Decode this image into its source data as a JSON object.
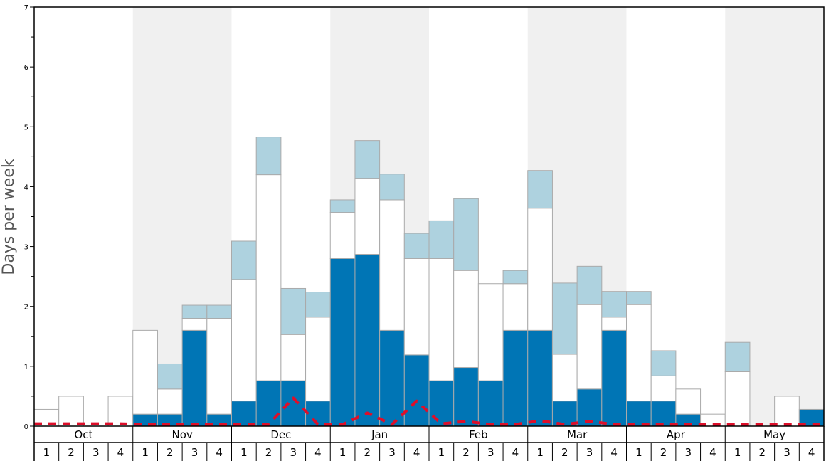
{
  "chart_data": {
    "type": "bar",
    "stacked": true,
    "ylabel": "Days per week",
    "ylim": [
      0,
      7
    ],
    "y_ticks": [
      "0",
      "1",
      "2",
      "3",
      "4",
      "5",
      "6",
      "7"
    ],
    "grid": false,
    "months": [
      "Oct",
      "Nov",
      "Dec",
      "Jan",
      "Feb",
      "Mar",
      "Apr",
      "May"
    ],
    "weeks_per_month": [
      "1",
      "2",
      "3",
      "4"
    ],
    "colors": {
      "base": "#0075b5",
      "middle": "#ffffff",
      "top": "#aed2df",
      "line": "#dd0f2a",
      "shade": "#f0f0f0",
      "bar_stroke": "#aaaaaa"
    },
    "series": [
      {
        "values": [
          0,
          0,
          0,
          0,
          0.2,
          0.2,
          1.6,
          0.2,
          0.42,
          0.76,
          0.76,
          0.42,
          2.8,
          2.87,
          1.6,
          1.19,
          0.76,
          0.98,
          0.76,
          1.6,
          1.6,
          0.42,
          0.62,
          1.6,
          0.42,
          0.42,
          0.2,
          0,
          0,
          0,
          0,
          0.28
        ]
      },
      {
        "values": [
          0.28,
          0.5,
          0,
          0.5,
          1.4,
          0.42,
          0.2,
          1.6,
          2.03,
          3.44,
          0.77,
          1.4,
          0.77,
          1.27,
          2.18,
          1.61,
          2.04,
          1.62,
          1.62,
          0.78,
          2.04,
          0.78,
          1.41,
          0.22,
          1.61,
          0.42,
          0.42,
          0.2,
          0.91,
          0,
          0.5,
          0
        ]
      },
      {
        "values": [
          0,
          0,
          0,
          0,
          0,
          0.42,
          0.22,
          0.22,
          0.64,
          0.63,
          0.77,
          0.42,
          0.21,
          0.63,
          0.43,
          0.42,
          0.63,
          1.2,
          0,
          0.22,
          0.63,
          1.19,
          0.64,
          0.43,
          0.22,
          0.42,
          0,
          0,
          0.49,
          0,
          0,
          0
        ]
      },
      {
        "type": "line",
        "style": "dashed",
        "values": [
          0.04,
          0.04,
          0.04,
          0.04,
          0.03,
          0.03,
          0.03,
          0.03,
          0.03,
          0.03,
          0.47,
          0.03,
          0.03,
          0.22,
          0.03,
          0.42,
          0.04,
          0.08,
          0.03,
          0.03,
          0.09,
          0.03,
          0.08,
          0.03,
          0.03,
          0.03,
          0.03,
          0.03,
          0.03,
          0.03,
          0.03,
          0.03
        ]
      }
    ]
  }
}
